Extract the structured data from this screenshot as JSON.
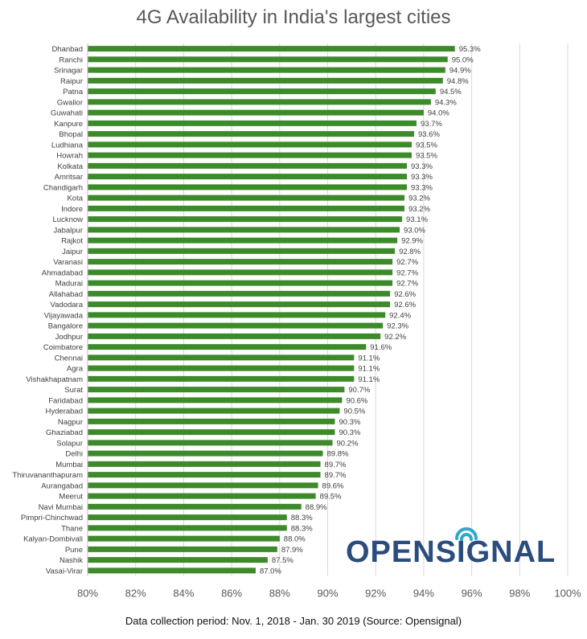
{
  "chart_data": {
    "type": "bar",
    "orientation": "horizontal",
    "title": "4G Availability in India's largest cities",
    "xlabel": "",
    "ylabel": "",
    "xlim": [
      80,
      100
    ],
    "x_ticks": [
      "80%",
      "82%",
      "84%",
      "86%",
      "88%",
      "90%",
      "92%",
      "94%",
      "96%",
      "98%",
      "100%"
    ],
    "grid": "vertical",
    "legend": "none",
    "bar_color": "#3d8a2a",
    "categories": [
      "Dhanbad",
      "Ranchi",
      "Srinagar",
      "Raipur",
      "Patna",
      "Gwalior",
      "Guwahati",
      "Kanpure",
      "Bhopal",
      "Ludhiana",
      "Howrah",
      "Kolkata",
      "Amritsar",
      "Chandigarh",
      "Kota",
      "Indore",
      "Lucknow",
      "Jabalpur",
      "Rajkot",
      "Jaipur",
      "Varanasi",
      "Ahmadabad",
      "Madurai",
      "Allahabad",
      "Vadodara",
      "Vijayawada",
      "Bangalore",
      "Jodhpur",
      "Coimbatore",
      "Chennai",
      "Agra",
      "Vishakhapatnam",
      "Surat",
      "Faridabad",
      "Hyderabad",
      "Nagpur",
      "Ghaziabad",
      "Solapur",
      "Delhi",
      "Mumbai",
      "Thiruvananthapuram",
      "Aurangabad",
      "Meerut",
      "Navi Mumbai",
      "Pimpri-Chinchwad",
      "Thane",
      "Kalyan-Dombivali",
      "Pune",
      "Nashik",
      "Vasai-Virar"
    ],
    "values": [
      95.3,
      95.0,
      94.9,
      94.8,
      94.5,
      94.3,
      94.0,
      93.7,
      93.6,
      93.5,
      93.5,
      93.3,
      93.3,
      93.3,
      93.2,
      93.2,
      93.1,
      93.0,
      92.9,
      92.8,
      92.7,
      92.7,
      92.7,
      92.6,
      92.6,
      92.4,
      92.3,
      92.2,
      91.6,
      91.1,
      91.1,
      91.1,
      90.7,
      90.6,
      90.5,
      90.3,
      90.3,
      90.2,
      89.8,
      89.7,
      89.7,
      89.6,
      89.5,
      88.9,
      88.3,
      88.3,
      88.0,
      87.9,
      87.5,
      87.0
    ],
    "data_labels": [
      "95.3%",
      "95.0%",
      "94.9%",
      "94.8%",
      "94.5%",
      "94.3%",
      "94.0%",
      "93.7%",
      "93.6%",
      "93.5%",
      "93.5%",
      "93.3%",
      "93.3%",
      "93.3%",
      "93.2%",
      "93.2%",
      "93.1%",
      "93.0%",
      "92.9%",
      "92.8%",
      "92.7%",
      "92.7%",
      "92.7%",
      "92.6%",
      "92.6%",
      "92.4%",
      "92.3%",
      "92.2%",
      "91.6%",
      "91.1%",
      "91.1%",
      "91.1%",
      "90.7%",
      "90.6%",
      "90.5%",
      "90.3%",
      "90.3%",
      "90.2%",
      "89.8%",
      "89.7%",
      "89.7%",
      "89.6%",
      "89.5%",
      "88.9%",
      "88.3%",
      "88.3%",
      "88.0%",
      "87.9%",
      "87.5%",
      "87.0%"
    ]
  },
  "footer": "Data collection period: Nov. 1, 2018 - Jan. 30 2019 (Source: Opensignal)",
  "logo": {
    "text": "OPENSIGNAL",
    "colors": {
      "text": "#2b4d7e",
      "waves": "#2fa8c9"
    }
  }
}
